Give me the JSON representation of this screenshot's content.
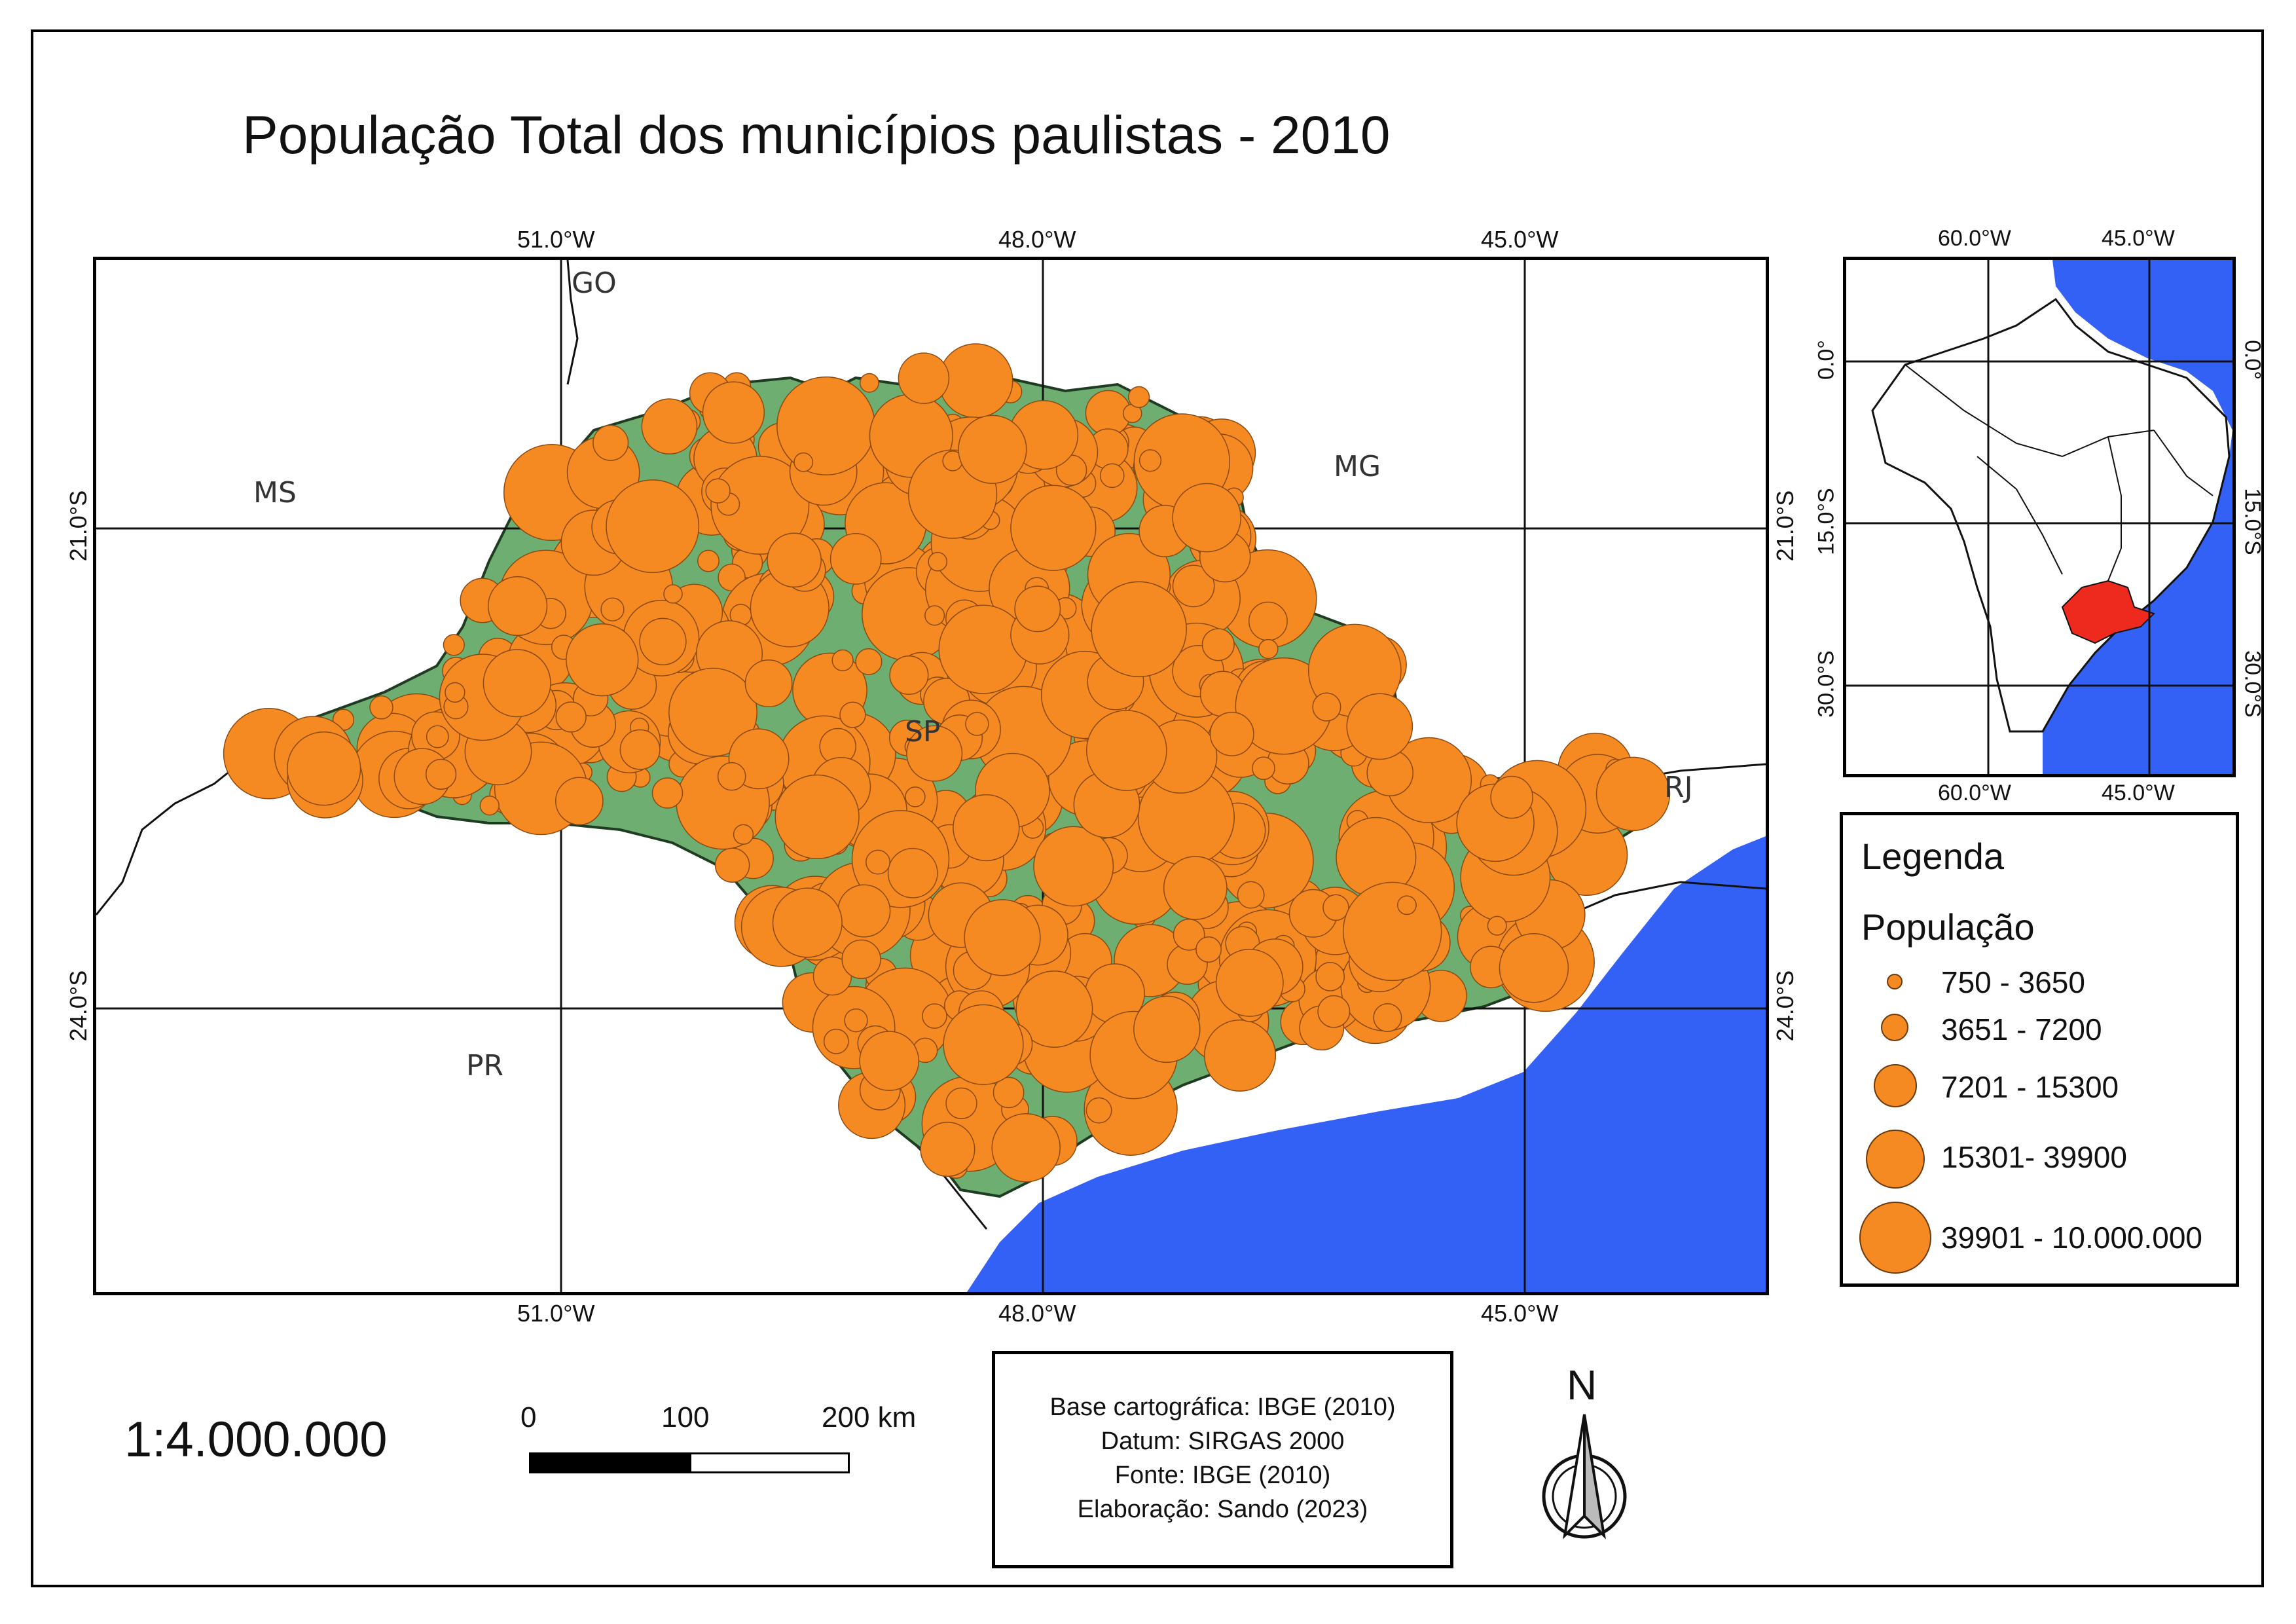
{
  "title": "População Total dos municípios paulistas - 2010",
  "main_map": {
    "top_lon_labels": [
      "51.0°W",
      "48.0°W",
      "45.0°W"
    ],
    "bottom_lon_labels": [
      "51.0°W",
      "48.0°W",
      "45.0°W"
    ],
    "left_lat_labels": [
      "21.0°S",
      "24.0°S"
    ],
    "right_lat_labels": [
      "21.0°S",
      "24.0°S"
    ],
    "state_labels": {
      "go": "GO",
      "ms": "MS",
      "mg": "MG",
      "sp": "SP",
      "rj": "RJ",
      "pr": "PR"
    },
    "colors": {
      "ocean": "#3461f5",
      "state_fill": "#6fae71",
      "bubble": "#f58a22",
      "bubble_stroke": "#8a4a12"
    }
  },
  "inset_map": {
    "top_labels": [
      "60.0°W",
      "45.0°W"
    ],
    "bottom_labels": [
      "60.0°W",
      "45.0°W"
    ],
    "left_labels": [
      "0.0°",
      "15.0°S",
      "30.0°S"
    ],
    "right_labels": [
      "0.0°",
      "15.0°S",
      "30.0°S"
    ],
    "highlight_color": "#ee2a1f"
  },
  "legend": {
    "title": "Legenda",
    "subtitle": "População",
    "classes": [
      {
        "label": "750 - 3650"
      },
      {
        "label": "3651 - 7200"
      },
      {
        "label": "7201 - 15300"
      },
      {
        "label": "15301- 39900"
      },
      {
        "label": "39901 - 10.000.000"
      }
    ]
  },
  "scale": {
    "ratio": "1:4.000.000",
    "bar_labels": [
      "0",
      "100",
      "200 km"
    ]
  },
  "credits": {
    "line1": "Base cartográfica: IBGE (2010)",
    "line2": "Datum: SIRGAS 2000",
    "line3": "Fonte: IBGE (2010)",
    "line4": "Elaboração: Sando (2023)"
  },
  "north_arrow": {
    "letter": "N"
  }
}
